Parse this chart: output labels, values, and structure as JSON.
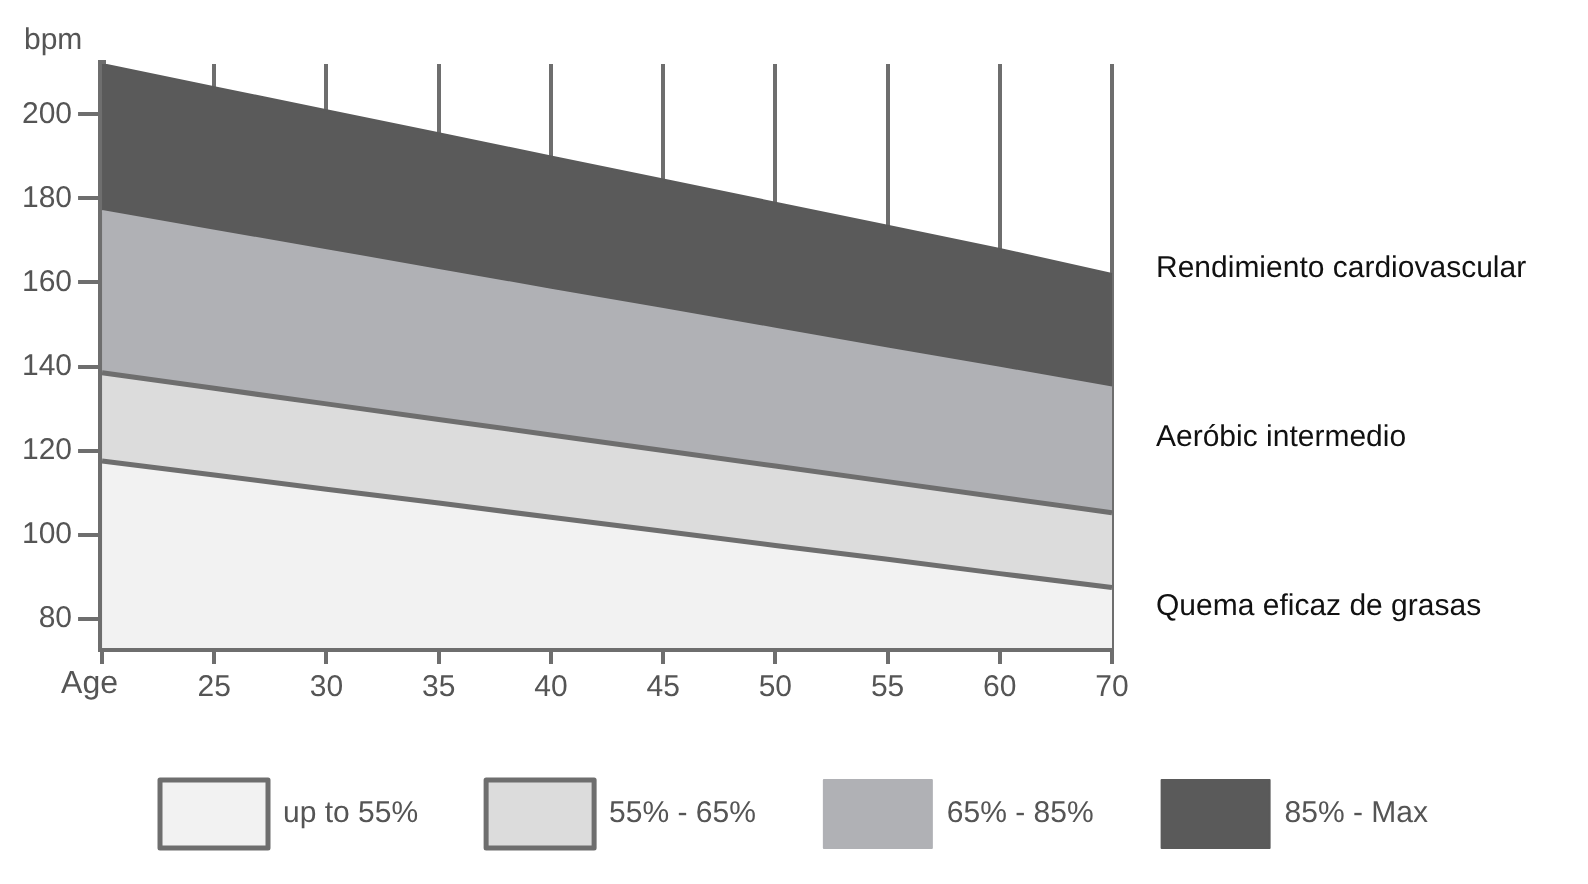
{
  "chart_data": {
    "type": "area",
    "xlabel": "Age",
    "ylabel": "bpm",
    "categories": [
      null,
      "25",
      "30",
      "35",
      "40",
      "45",
      "50",
      "55",
      "60",
      "70"
    ],
    "series": [
      {
        "name": "up to 55%",
        "color": "#f2f2f2",
        "values": [
          117.5,
          114.2,
          110.8,
          107.5,
          104.1,
          100.8,
          97.4,
          94.1,
          90.7,
          87.4
        ]
      },
      {
        "name": "55% - 65%",
        "color": "#dcdcdc",
        "values": [
          138.5,
          134.8,
          131.1,
          127.4,
          123.7,
          120.0,
          116.3,
          112.6,
          108.9,
          105.2
        ]
      },
      {
        "name": "65% - 85%",
        "color": "#b0b1b5",
        "values": [
          177,
          172.3,
          167.7,
          163,
          158.3,
          153.7,
          149,
          144.3,
          139.7,
          135
        ]
      },
      {
        "name": "85% - Max",
        "color": "#5a5a5a",
        "values": [
          212,
          206.5,
          201,
          195.5,
          190,
          184.5,
          179,
          173.5,
          168,
          162
        ]
      }
    ],
    "ylim": [
      73,
      212
    ],
    "yticks": [
      80,
      100,
      120,
      140,
      160,
      180,
      200
    ],
    "grid": "x",
    "legend": "bottom",
    "annotations": [
      "Rendimiento cardiovascular",
      "Aeróbic intermedio",
      "Quema eficaz de grasas"
    ]
  }
}
